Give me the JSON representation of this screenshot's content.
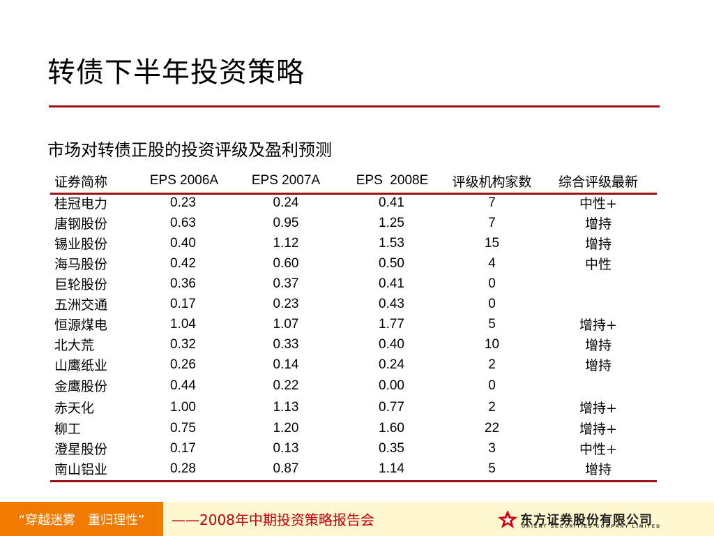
{
  "title": "转债下半年投资策略",
  "subtitle": "市场对转债正股的投资评级及盈利预测",
  "table": {
    "headers": [
      "证券简称",
      "EPS 2006A",
      "EPS 2007A",
      "EPS  2008E",
      "评级机构家数",
      "综合评级最新"
    ],
    "rows": [
      [
        "桂冠电力",
        "0.23",
        "0.24",
        "0.41",
        "7",
        "中性+"
      ],
      [
        "唐钢股份",
        "0.63",
        "0.95",
        "1.25",
        "7",
        "增持"
      ],
      [
        "锡业股份",
        "0.40",
        "1.12",
        "1.53",
        "15",
        "增持"
      ],
      [
        "海马股份",
        "0.42",
        "0.60",
        "0.50",
        "4",
        "中性"
      ],
      [
        "巨轮股份",
        "0.36",
        "0.37",
        "0.41",
        "0",
        ""
      ],
      [
        "五洲交通",
        "0.17",
        "0.23",
        "0.43",
        "0",
        ""
      ],
      [
        "恒源煤电",
        "1.04",
        "1.07",
        "1.77",
        "5",
        "增持+"
      ],
      [
        "北大荒",
        "0.32",
        "0.33",
        "0.40",
        "10",
        "增持"
      ],
      [
        "山鹰纸业",
        "0.26",
        "0.14",
        "0.24",
        "2",
        "增持"
      ],
      [
        "金鹰股份",
        "0.44",
        "0.22",
        "0.00",
        "0",
        ""
      ],
      [
        "赤天化",
        "1.00",
        "1.13",
        "0.77",
        "2",
        "增持+"
      ],
      [
        "柳工",
        "0.75",
        "1.20",
        "1.60",
        "22",
        "增持+"
      ],
      [
        "澄星股份",
        "0.17",
        "0.13",
        "0.35",
        "3",
        "中性+"
      ],
      [
        "南山铝业",
        "0.28",
        "0.87",
        "1.14",
        "5",
        "增持"
      ]
    ]
  },
  "footer": {
    "slogan": "“穿越迷雾　重归理性”",
    "event": "——2008年中期投资策略报告会",
    "logo_name": "东方证券股份有限公司",
    "logo_sub": "ORIENT SECURITIES COMPANY LIMITED",
    "logo_icon": "orient-securities-logo-icon"
  },
  "colors": {
    "rule": "#9b0f16",
    "footer_orange": "#f07b00",
    "footer_band": "#fff7d0",
    "footer_text_red": "#c0000e"
  }
}
